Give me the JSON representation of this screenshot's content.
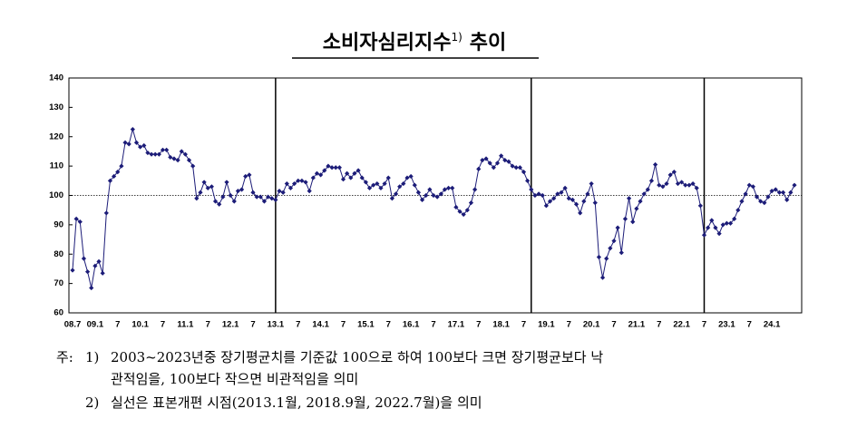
{
  "chart_data": {
    "type": "line",
    "title": "소비자심리지수",
    "title_note": "1)",
    "title_suffix": "추이",
    "categories": [
      "08.7",
      null,
      null,
      null,
      null,
      null,
      "09.1",
      null,
      null,
      null,
      null,
      null,
      "7",
      null,
      null,
      null,
      null,
      null,
      "10.1",
      null,
      null,
      null,
      null,
      null,
      "7",
      null,
      null,
      null,
      null,
      null,
      "11.1",
      null,
      null,
      null,
      null,
      null,
      "7",
      null,
      null,
      null,
      null,
      null,
      "12.1",
      null,
      null,
      null,
      null,
      null,
      "7",
      null,
      null,
      null,
      null,
      null,
      "13.1",
      null,
      null,
      null,
      null,
      null,
      "7",
      null,
      null,
      null,
      null,
      null,
      "14.1",
      null,
      null,
      null,
      null,
      null,
      "7",
      null,
      null,
      null,
      null,
      null,
      "15.1",
      null,
      null,
      null,
      null,
      null,
      "7",
      null,
      null,
      null,
      null,
      null,
      "16.1",
      null,
      null,
      null,
      null,
      null,
      "7",
      null,
      null,
      null,
      null,
      null,
      "17.1",
      null,
      null,
      null,
      null,
      null,
      "7",
      null,
      null,
      null,
      null,
      null,
      "18.1",
      null,
      null,
      null,
      null,
      null,
      "7",
      null,
      null,
      null,
      null,
      null,
      "19.1",
      null,
      null,
      null,
      null,
      null,
      "7",
      null,
      null,
      null,
      null,
      null,
      "20.1",
      null,
      null,
      null,
      null,
      null,
      "7",
      null,
      null,
      null,
      null,
      null,
      "21.1",
      null,
      null,
      null,
      null,
      null,
      "7",
      null,
      null,
      null,
      null,
      null,
      "22.1",
      null,
      null,
      null,
      null,
      null,
      "7",
      null,
      null,
      null,
      null,
      null,
      "23.1",
      null,
      null,
      null,
      null,
      null,
      "7",
      null,
      null,
      null,
      null,
      null,
      "24.1",
      null,
      null,
      null,
      null,
      null,
      null
    ],
    "values": [
      74.5,
      92,
      91,
      78.5,
      74,
      68.5,
      76,
      77.5,
      73.5,
      94,
      105,
      106.5,
      108,
      110,
      118,
      117.5,
      122.5,
      118,
      116.5,
      117,
      114.5,
      114,
      114,
      114,
      115.5,
      115.5,
      113,
      112.5,
      112,
      115,
      114,
      112,
      110,
      99,
      101,
      104.5,
      102.5,
      103,
      98,
      97,
      99.5,
      104.5,
      100,
      98,
      101.5,
      102,
      106.5,
      107,
      101,
      99.5,
      99.5,
      98,
      99.5,
      99,
      98.5,
      101.5,
      101,
      104,
      102.5,
      104,
      105,
      105,
      104.5,
      101.5,
      106,
      107.5,
      107,
      108.5,
      110,
      109.5,
      109.5,
      109.5,
      105.5,
      107.5,
      106,
      107.5,
      108.5,
      106,
      104.5,
      102.5,
      103.5,
      104,
      102.5,
      104,
      106,
      99,
      100.5,
      103,
      104,
      106,
      106.5,
      103.5,
      101,
      98.5,
      100,
      102,
      100,
      99.5,
      100.5,
      102,
      102.5,
      102.5,
      96,
      94.5,
      93.5,
      95,
      97.5,
      102,
      109,
      112,
      112.5,
      111,
      109.5,
      111,
      113.5,
      112,
      111.5,
      110,
      109.5,
      109.5,
      108,
      105,
      102,
      100,
      100.5,
      100,
      96.5,
      98,
      99,
      100.5,
      101,
      102.5,
      99,
      98.5,
      97,
      94,
      98,
      100.5,
      104,
      97.5,
      79,
      72,
      78.5,
      82,
      84.5,
      89,
      80.5,
      92,
      99,
      91,
      95.5,
      98,
      100.5,
      102,
      105,
      110.5,
      103.5,
      103,
      104,
      107,
      108,
      104,
      104.5,
      103.5,
      103.5,
      104,
      102.5,
      96.5,
      86.5,
      89,
      91.5,
      89,
      87,
      90,
      90.5,
      90.5,
      92,
      95,
      98,
      100.5,
      103.5,
      103,
      99.5,
      98,
      97.5,
      99.5,
      101.5,
      102,
      101,
      101,
      98.5,
      101,
      103.5
    ],
    "color": "#1c1c78",
    "ylim": [
      60,
      140
    ],
    "yticks": [
      60,
      70,
      80,
      90,
      100,
      110,
      120,
      130,
      140
    ],
    "reference_line": 100,
    "dividers": [
      54,
      122,
      168
    ]
  },
  "notes": {
    "label": "주:",
    "items": [
      {
        "mark": "1)",
        "lines": [
          "2003~2023년중 장기평균치를 기준값 100으로 하여 100보다 크면 장기평균보다 낙",
          "관적임을, 100보다 작으면 비관적임을 의미"
        ]
      },
      {
        "mark": "2)",
        "lines": [
          "실선은 표본개편 시점(2013.1월, 2018.9월, 2022.7월)을 의미"
        ]
      }
    ]
  }
}
